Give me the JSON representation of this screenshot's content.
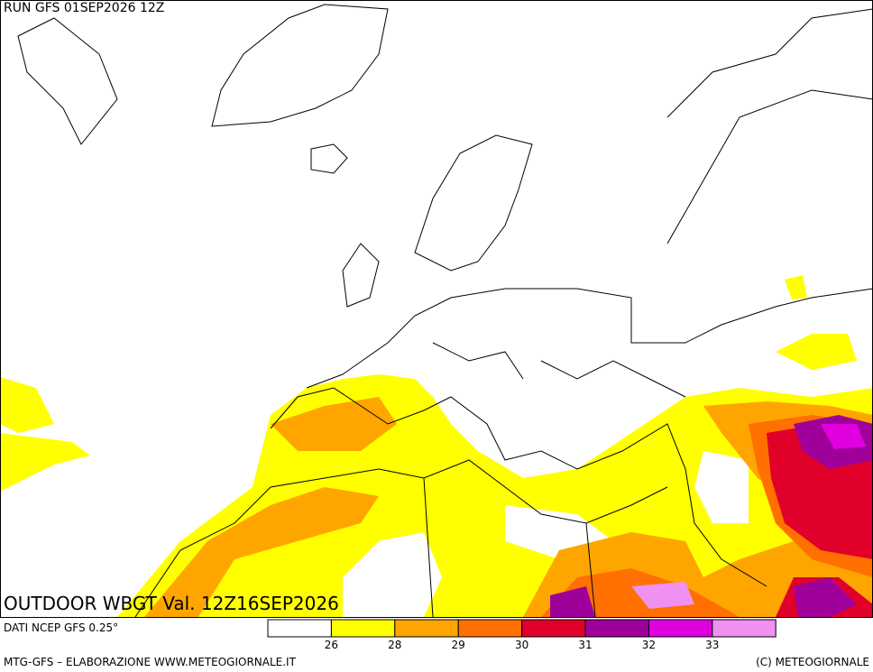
{
  "header": {
    "run": "RUN GFS 01SEP2026 12Z"
  },
  "map": {
    "title": "OUTDOOR WBGT Val. 12Z16SEP2026"
  },
  "legend": {
    "source": "DATI NCEP GFS 0.25°",
    "colors": [
      "#ffffff",
      "#ffff00",
      "#ffa500",
      "#ff7000",
      "#e0002a",
      "#a0009a",
      "#e000e0",
      "#f090f0"
    ],
    "labels": [
      26,
      28,
      29,
      30,
      31,
      32,
      33
    ]
  },
  "footer": {
    "left": "MTG-GFS – ELABORAZIONE WWW.METEOGIORNALE.IT",
    "right": "(C) METEOGIORNALE"
  }
}
